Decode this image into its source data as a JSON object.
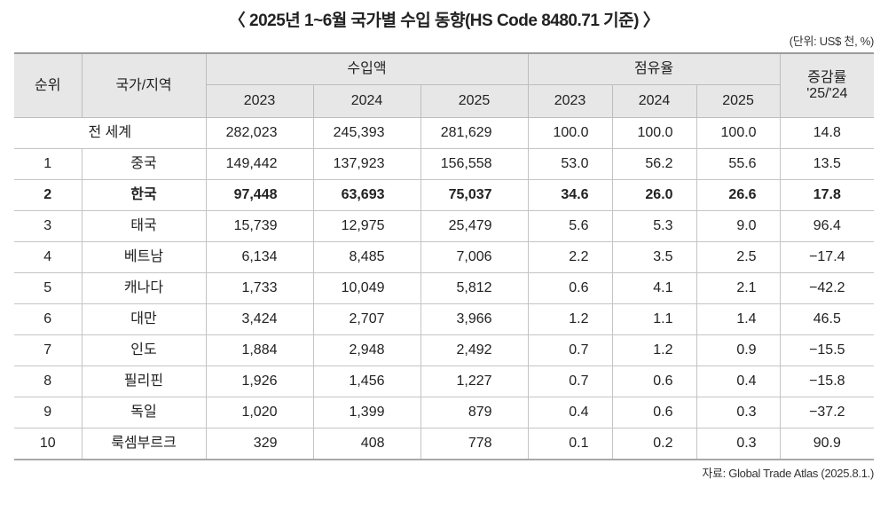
{
  "title": "〈 2025년 1~6월 국가별 수입 동향(HS Code 8480.71 기준) 〉",
  "unit": "(단위: US$ 천, %)",
  "headers": {
    "rank": "순위",
    "country": "국가/지역",
    "import_amount": "수입액",
    "share": "점유율",
    "change_line1": "증감률",
    "change_line2": "'25/'24",
    "years": [
      "2023",
      "2024",
      "2025"
    ]
  },
  "total": {
    "label": "전 세계",
    "amounts": [
      "282,023",
      "245,393",
      "281,629"
    ],
    "shares": [
      "100.0",
      "100.0",
      "100.0"
    ],
    "change": "14.8"
  },
  "rows": [
    {
      "rank": "1",
      "country": "중국",
      "amounts": [
        "149,442",
        "137,923",
        "156,558"
      ],
      "shares": [
        "53.0",
        "56.2",
        "55.6"
      ],
      "change": "13.5"
    },
    {
      "rank": "2",
      "country": "한국",
      "amounts": [
        "97,448",
        "63,693",
        "75,037"
      ],
      "shares": [
        "34.6",
        "26.0",
        "26.6"
      ],
      "change": "17.8"
    },
    {
      "rank": "3",
      "country": "태국",
      "amounts": [
        "15,739",
        "12,975",
        "25,479"
      ],
      "shares": [
        "5.6",
        "5.3",
        "9.0"
      ],
      "change": "96.4"
    },
    {
      "rank": "4",
      "country": "베트남",
      "amounts": [
        "6,134",
        "8,485",
        "7,006"
      ],
      "shares": [
        "2.2",
        "3.5",
        "2.5"
      ],
      "change": "−17.4"
    },
    {
      "rank": "5",
      "country": "캐나다",
      "amounts": [
        "1,733",
        "10,049",
        "5,812"
      ],
      "shares": [
        "0.6",
        "4.1",
        "2.1"
      ],
      "change": "−42.2"
    },
    {
      "rank": "6",
      "country": "대만",
      "amounts": [
        "3,424",
        "2,707",
        "3,966"
      ],
      "shares": [
        "1.2",
        "1.1",
        "1.4"
      ],
      "change": "46.5"
    },
    {
      "rank": "7",
      "country": "인도",
      "amounts": [
        "1,884",
        "2,948",
        "2,492"
      ],
      "shares": [
        "0.7",
        "1.2",
        "0.9"
      ],
      "change": "−15.5"
    },
    {
      "rank": "8",
      "country": "필리핀",
      "amounts": [
        "1,926",
        "1,456",
        "1,227"
      ],
      "shares": [
        "0.7",
        "0.6",
        "0.4"
      ],
      "change": "−15.8"
    },
    {
      "rank": "9",
      "country": "독일",
      "amounts": [
        "1,020",
        "1,399",
        "879"
      ],
      "shares": [
        "0.4",
        "0.6",
        "0.3"
      ],
      "change": "−37.2"
    },
    {
      "rank": "10",
      "country": "룩셈부르크",
      "amounts": [
        "329",
        "408",
        "778"
      ],
      "shares": [
        "0.1",
        "0.2",
        "0.3"
      ],
      "change": "90.9"
    }
  ],
  "source": "자료: Global Trade Atlas (2025.8.1.)"
}
